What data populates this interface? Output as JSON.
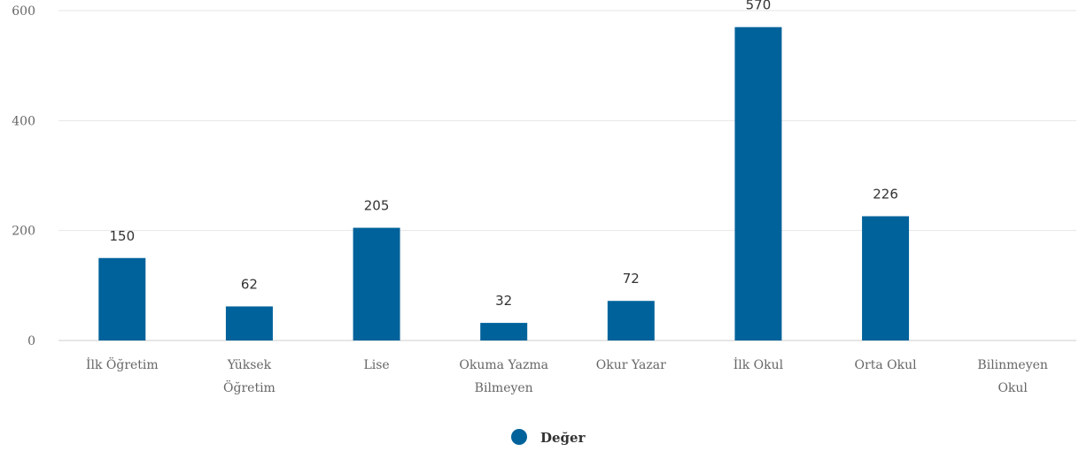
{
  "chart_data": {
    "type": "bar",
    "categories": [
      [
        "İlk Öğretim"
      ],
      [
        "Yüksek",
        "Öğretim"
      ],
      [
        "Lise"
      ],
      [
        "Okuma Yazma",
        "Bilmeyen"
      ],
      [
        "Okur Yazar"
      ],
      [
        "İlk Okul"
      ],
      [
        "Orta Okul"
      ],
      [
        "Bilinmeyen",
        "Okul"
      ]
    ],
    "series": [
      {
        "name": "Değer",
        "values": [
          150,
          62,
          205,
          32,
          72,
          570,
          226,
          0
        ],
        "data_labels": [
          "150",
          "62",
          "205",
          "32",
          "72",
          "570",
          "226",
          ""
        ],
        "color": "#00629b"
      }
    ],
    "ylim": [
      0,
      600
    ],
    "yticks": [
      0,
      200,
      400,
      600
    ],
    "grid": true,
    "legend_position": "bottom"
  }
}
